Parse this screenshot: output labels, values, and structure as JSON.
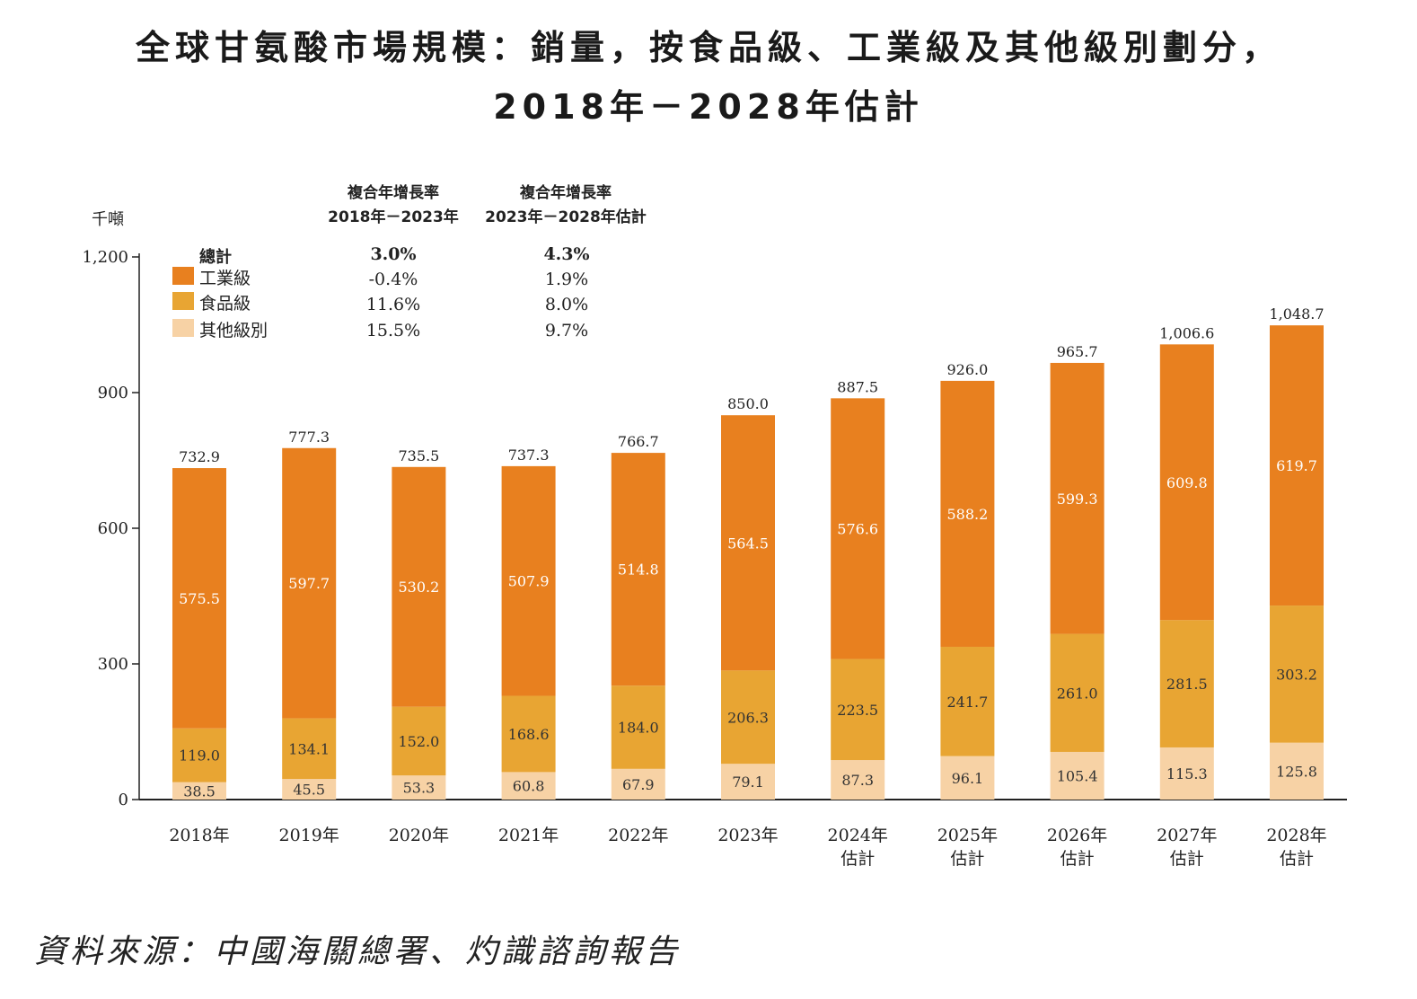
{
  "title": {
    "line1": "全球甘氨酸市場規模：銷量，按食品級、工業級及其他級別劃分，",
    "line2": "2018年－2028年估計"
  },
  "source": "資料來源：中國海關總署、灼識諮詢報告",
  "colors": {
    "industrial": "#E8801F",
    "food": "#E8A533",
    "other": "#F7D2A5",
    "axis": "#222222"
  },
  "legend": {
    "total": "總計",
    "items": [
      {
        "label": "工業級",
        "color": "#E8801F"
      },
      {
        "label": "食品級",
        "color": "#E8A533"
      },
      {
        "label": "其他級別",
        "color": "#F7D2A5"
      }
    ]
  },
  "cagr": {
    "col1_header": [
      "複合年增長率",
      "2018年－2023年"
    ],
    "col2_header": [
      "複合年增長率",
      "2023年－2028年估計"
    ],
    "col1_values": [
      "3.0%",
      "-0.4%",
      "11.6%",
      "15.5%"
    ],
    "col2_values": [
      "4.3%",
      "1.9%",
      "8.0%",
      "9.7%"
    ]
  },
  "chart_data": {
    "type": "bar",
    "stacked": true,
    "ylabel": "千噸",
    "ylim": [
      0,
      1200
    ],
    "yticks": [
      "0",
      "300",
      "600",
      "900",
      "1,200"
    ],
    "categories": [
      [
        "2018年"
      ],
      [
        "2019年"
      ],
      [
        "2020年"
      ],
      [
        "2021年"
      ],
      [
        "2022年"
      ],
      [
        "2023年"
      ],
      [
        "2024年",
        "估計"
      ],
      [
        "2025年",
        "估計"
      ],
      [
        "2026年",
        "估計"
      ],
      [
        "2027年",
        "估計"
      ],
      [
        "2028年",
        "估計"
      ]
    ],
    "series": [
      {
        "name": "其他級別",
        "values": [
          38.5,
          45.5,
          53.3,
          60.8,
          67.9,
          79.1,
          87.3,
          96.1,
          105.4,
          115.3,
          125.8
        ],
        "labels": [
          "38.5",
          "45.5",
          "53.3",
          "60.8",
          "67.9",
          "79.1",
          "87.3",
          "96.1",
          "105.4",
          "115.3",
          "125.8"
        ]
      },
      {
        "name": "食品級",
        "values": [
          119.0,
          134.1,
          152.0,
          168.6,
          184.0,
          206.3,
          223.5,
          241.7,
          261.0,
          281.5,
          303.2
        ],
        "labels": [
          "119.0",
          "134.1",
          "152.0",
          "168.6",
          "184.0",
          "206.3",
          "223.5",
          "241.7",
          "261.0",
          "281.5",
          "303.2"
        ]
      },
      {
        "name": "工業級",
        "values": [
          575.5,
          597.7,
          530.2,
          507.9,
          514.8,
          564.5,
          576.6,
          588.2,
          599.3,
          609.8,
          619.7
        ],
        "labels": [
          "575.5",
          "597.7",
          "530.2",
          "507.9",
          "514.8",
          "564.5",
          "576.6",
          "588.2",
          "599.3",
          "609.8",
          "619.7"
        ]
      }
    ],
    "totals": [
      732.9,
      777.3,
      735.5,
      737.3,
      766.7,
      850.0,
      887.5,
      926.0,
      965.7,
      1006.6,
      1048.7
    ],
    "total_labels": [
      "732.9",
      "777.3",
      "735.5",
      "737.3",
      "766.7",
      "850.0",
      "887.5",
      "926.0",
      "965.7",
      "1,006.6",
      "1,048.7"
    ]
  }
}
